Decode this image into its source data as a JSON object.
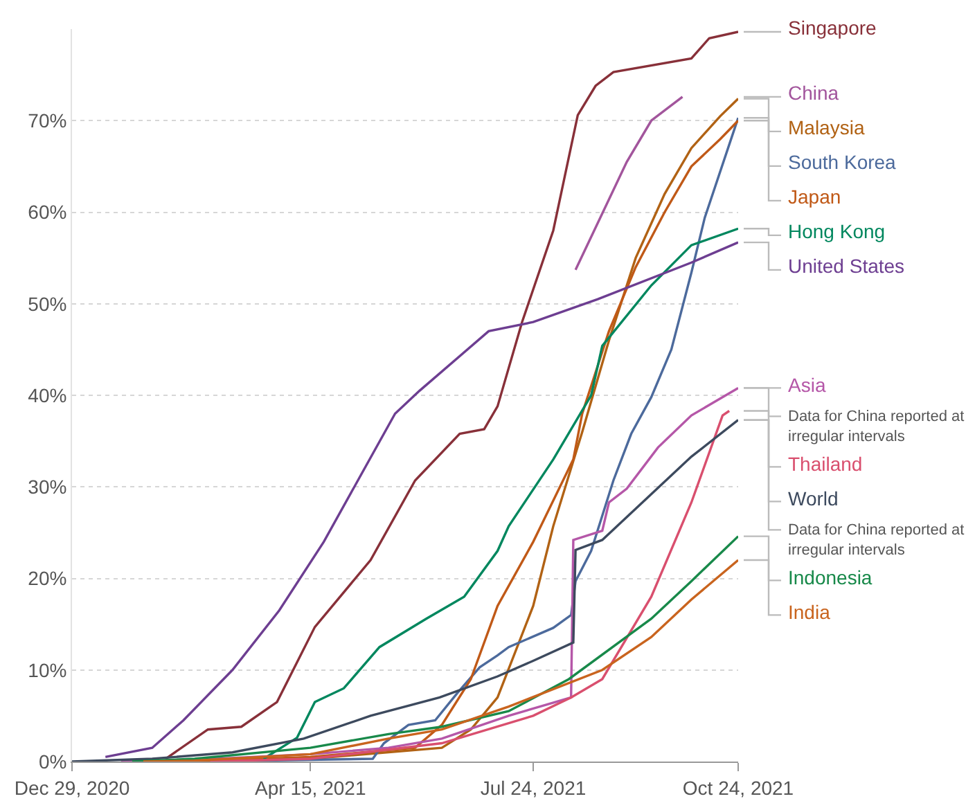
{
  "chart_data": {
    "type": "line",
    "grid": "y",
    "legend": false,
    "marker": "none",
    "line_style": "solid",
    "xlim": [
      "2020-12-29",
      "2021-10-24"
    ],
    "xticks": [
      {
        "value": "2020-12-29",
        "label": "Dec 29, 2020"
      },
      {
        "value": "2021-04-15",
        "label": "Apr 15, 2021"
      },
      {
        "value": "2021-07-24",
        "label": "Jul 24, 2021"
      },
      {
        "value": "2021-10-24",
        "label": "Oct 24, 2021"
      }
    ],
    "ylim": [
      0,
      80
    ],
    "yticks": [
      {
        "value": 0,
        "label": "0%"
      },
      {
        "value": 10,
        "label": "10%"
      },
      {
        "value": 20,
        "label": "20%"
      },
      {
        "value": 30,
        "label": "30%"
      },
      {
        "value": 40,
        "label": "40%"
      },
      {
        "value": 50,
        "label": "50%"
      },
      {
        "value": 60,
        "label": "60%"
      },
      {
        "value": 70,
        "label": "70%"
      }
    ],
    "annotations": [
      {
        "text": "Data for China reported at irregular intervals",
        "x": "2021-10-24",
        "y": 40.8
      },
      {
        "text": "Data for China reported at irregular intervals",
        "x": "2021-10-24",
        "y": 37.3
      }
    ],
    "series": [
      {
        "name": "Singapore",
        "color": "#883039",
        "x": [
          "2021-02-09",
          "2021-02-28",
          "2021-03-15",
          "2021-03-31",
          "2021-04-17",
          "2021-05-12",
          "2021-06-01",
          "2021-06-21",
          "2021-07-02",
          "2021-07-08",
          "2021-07-19",
          "2021-08-02",
          "2021-08-13",
          "2021-08-21",
          "2021-08-29",
          "2021-10-03",
          "2021-10-11",
          "2021-10-24"
        ],
        "values": [
          0.3,
          3.5,
          3.8,
          6.5,
          14.7,
          22,
          30.7,
          35.8,
          36.3,
          38.8,
          48,
          58,
          70.6,
          73.8,
          75.3,
          76.8,
          79,
          79.7
        ]
      },
      {
        "name": "China",
        "color": "#a2559c",
        "x": [
          "2021-08-12",
          "2021-09-04",
          "2021-09-15",
          "2021-09-29"
        ],
        "values": [
          53.7,
          65.5,
          70,
          72.6
        ]
      },
      {
        "name": "Malaysia",
        "color": "#b16214",
        "x": [
          "2021-02-22",
          "2021-04-15",
          "2021-06-13",
          "2021-06-26",
          "2021-07-08",
          "2021-07-24",
          "2021-08-02",
          "2021-08-15",
          "2021-08-27",
          "2021-09-08",
          "2021-09-21",
          "2021-10-03",
          "2021-10-16",
          "2021-10-24"
        ],
        "values": [
          0,
          0.3,
          1.5,
          3.5,
          7,
          17,
          25.7,
          36,
          46,
          55,
          62,
          67,
          70.5,
          72.4
        ]
      },
      {
        "name": "South Korea",
        "color": "#4c6a9c",
        "x": [
          "2021-02-26",
          "2021-05-13",
          "2021-05-18",
          "2021-05-29",
          "2021-06-10",
          "2021-06-20",
          "2021-06-30",
          "2021-07-08",
          "2021-07-13",
          "2021-08-02",
          "2021-08-10",
          "2021-08-12",
          "2021-08-19",
          "2021-08-29",
          "2021-09-06",
          "2021-09-15",
          "2021-09-24",
          "2021-10-03",
          "2021-10-09",
          "2021-10-24"
        ],
        "values": [
          0,
          0.3,
          2,
          4,
          4.5,
          7.5,
          10.3,
          11.6,
          12.5,
          14.6,
          16,
          19.7,
          23,
          30.7,
          35.8,
          39.8,
          45,
          53.4,
          59.4,
          70.3
        ]
      },
      {
        "name": "Japan",
        "color": "#c05917",
        "x": [
          "2021-02-17",
          "2021-04-15",
          "2021-06-01",
          "2021-06-13",
          "2021-06-26",
          "2021-07-08",
          "2021-07-24",
          "2021-08-11",
          "2021-08-15",
          "2021-08-27",
          "2021-09-08",
          "2021-09-21",
          "2021-10-03",
          "2021-10-16",
          "2021-10-24"
        ],
        "values": [
          0,
          0.5,
          1.5,
          4,
          9,
          17,
          24,
          33,
          38,
          47,
          54,
          60,
          65,
          68,
          70
        ]
      },
      {
        "name": "Hong Kong",
        "color": "#00875e",
        "x": [
          "2021-03-25",
          "2021-04-09",
          "2021-04-17",
          "2021-04-30",
          "2021-05-16",
          "2021-06-06",
          "2021-06-23",
          "2021-07-08",
          "2021-07-13",
          "2021-08-02",
          "2021-08-19",
          "2021-08-24",
          "2021-09-15",
          "2021-10-03",
          "2021-10-24"
        ],
        "values": [
          0.3,
          2.6,
          6.5,
          8,
          12.5,
          15.6,
          18,
          23,
          25.7,
          33,
          40,
          45.4,
          52,
          56.4,
          58.2
        ]
      },
      {
        "name": "United States",
        "color": "#6d3e91",
        "x": [
          "2021-01-13",
          "2021-02-03",
          "2021-02-17",
          "2021-03-11",
          "2021-04-01",
          "2021-04-21",
          "2021-05-07",
          "2021-05-23",
          "2021-06-03",
          "2021-07-04",
          "2021-07-24",
          "2021-08-22",
          "2021-10-03",
          "2021-10-24"
        ],
        "values": [
          0.5,
          1.5,
          4.5,
          10,
          16.5,
          24,
          31,
          38,
          40.5,
          47,
          48,
          50.5,
          54.5,
          56.7
        ]
      },
      {
        "name": "Asia",
        "color": "#b557a8",
        "x": [
          "2021-01-20",
          "2021-02-22",
          "2021-04-15",
          "2021-05-20",
          "2021-06-13",
          "2021-07-13",
          "2021-08-10",
          "2021-08-11",
          "2021-08-24",
          "2021-08-27",
          "2021-09-04",
          "2021-09-18",
          "2021-10-03",
          "2021-10-24"
        ],
        "values": [
          0,
          0.2,
          0.8,
          1.5,
          2.5,
          5,
          7,
          24.2,
          25.2,
          28.3,
          29.8,
          34.3,
          37.8,
          40.8
        ]
      },
      {
        "name": "Thailand",
        "color": "#d94f6e",
        "x": [
          "2021-03-01",
          "2021-04-15",
          "2021-06-13",
          "2021-07-24",
          "2021-08-10",
          "2021-08-24",
          "2021-09-15",
          "2021-10-03",
          "2021-10-17",
          "2021-10-20"
        ],
        "values": [
          0,
          0.3,
          2,
          5,
          7,
          9,
          18,
          28.3,
          37.8,
          38.3
        ]
      },
      {
        "name": "World",
        "color": "#3d4a5e",
        "x": [
          "2020-12-29",
          "2021-02-03",
          "2021-03-11",
          "2021-04-12",
          "2021-05-12",
          "2021-06-12",
          "2021-07-08",
          "2021-07-24",
          "2021-08-11",
          "2021-08-12",
          "2021-08-24",
          "2021-09-15",
          "2021-10-03",
          "2021-10-24"
        ],
        "values": [
          0,
          0.3,
          1,
          2.5,
          5,
          7,
          9.3,
          11,
          13,
          23.1,
          24.2,
          29.2,
          33.3,
          37.3
        ]
      },
      {
        "name": "Indonesia",
        "color": "#18894a",
        "x": [
          "2021-01-25",
          "2021-02-22",
          "2021-04-15",
          "2021-05-20",
          "2021-06-13",
          "2021-07-13",
          "2021-08-09",
          "2021-09-15",
          "2021-10-03",
          "2021-10-24"
        ],
        "values": [
          0,
          0.3,
          1.5,
          3,
          3.8,
          5.5,
          9,
          15.6,
          19.7,
          24.6
        ]
      },
      {
        "name": "India",
        "color": "#c9641e",
        "x": [
          "2021-01-30",
          "2021-02-22",
          "2021-04-15",
          "2021-05-20",
          "2021-06-13",
          "2021-07-13",
          "2021-08-24",
          "2021-09-15",
          "2021-10-03",
          "2021-10-24"
        ],
        "values": [
          0,
          0.1,
          0.8,
          2.5,
          3.5,
          6,
          10,
          13.6,
          17.7,
          22
        ]
      }
    ]
  }
}
